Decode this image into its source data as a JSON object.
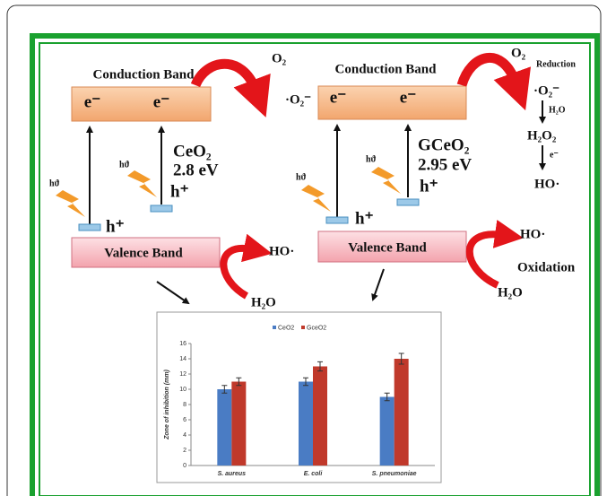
{
  "left": {
    "conduction_band": "Conduction Band",
    "electrons": [
      "e⁻",
      "e⁻"
    ],
    "oxygen": "O₂",
    "superoxide": "·O₂⁻",
    "material": "CeO₂",
    "band_gap": "2.8 eV",
    "photons": [
      "hϑ",
      "hϑ"
    ],
    "holes": [
      "h⁺",
      "h⁺"
    ],
    "valence_band": "Valence Band",
    "hydroxyl": "HO·",
    "water": "H₂O"
  },
  "right": {
    "conduction_band": "Conduction Band",
    "electrons": [
      "e⁻",
      "e⁻"
    ],
    "oxygen": "O₂",
    "reduction": "Reduction",
    "superoxide": "·O₂⁻",
    "water_small": "H₂O",
    "peroxide": "H₂O₂",
    "electron_small": "e⁻",
    "hydroxyl_reduced": "HO·",
    "material": "GCeO₂",
    "band_gap": "2.95 eV",
    "photons": [
      "hϑ",
      "hϑ"
    ],
    "holes": [
      "h⁺",
      "h⁺"
    ],
    "valence_band": "Valence Band",
    "hydroxyl": "HO·",
    "oxidation": "Oxidation",
    "water": "H₂O"
  },
  "chart_data": {
    "type": "bar",
    "y_label": "Zone of inhibition (mm)",
    "categories": [
      "S. aureus",
      "E. coli",
      "S. pneumoniae"
    ],
    "series": [
      {
        "name": "CeO2",
        "color": "#4a7cc4",
        "values": [
          10,
          11,
          9
        ],
        "errors": [
          0.5,
          0.5,
          0.5
        ]
      },
      {
        "name": "GceO2",
        "color": "#c0392b",
        "values": [
          11,
          13,
          14
        ],
        "errors": [
          0.5,
          0.6,
          0.7
        ]
      }
    ],
    "ylim": [
      0,
      16
    ],
    "yticks": [
      0,
      2,
      4,
      6,
      8,
      10,
      12,
      14,
      16
    ]
  }
}
